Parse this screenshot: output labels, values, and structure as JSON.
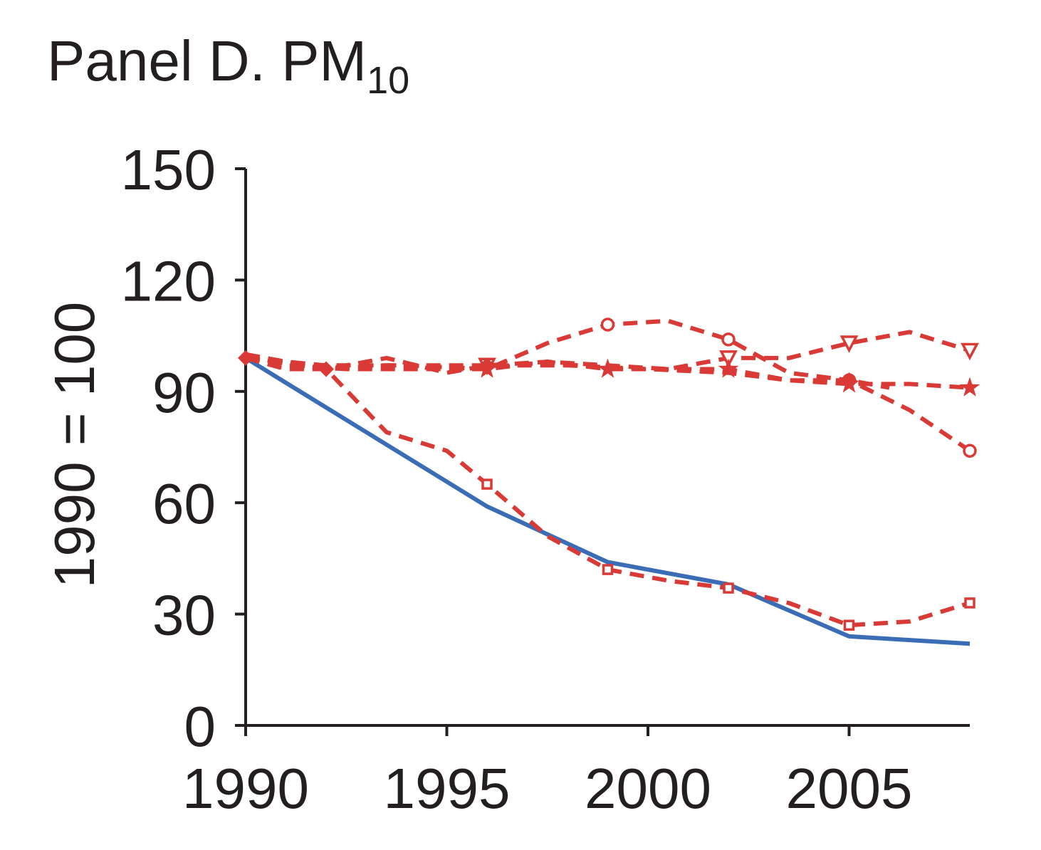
{
  "chart_data": {
    "type": "line",
    "title": "Panel D. PM",
    "title_subscript": "10",
    "xlabel": "",
    "ylabel": "1990 = 100",
    "xlim": [
      1990,
      2008
    ],
    "ylim": [
      0,
      150
    ],
    "x_ticks": [
      1990,
      1995,
      2000,
      2005
    ],
    "x_tick_labels": [
      "1990",
      "1995",
      "2000",
      "2005"
    ],
    "y_ticks": [
      0,
      30,
      60,
      90,
      120,
      150
    ],
    "y_tick_labels": [
      "0",
      "30",
      "60",
      "90",
      "120",
      "150"
    ],
    "grid": false,
    "legend": "none",
    "colors": {
      "solid": "#3a6db5",
      "dashed": "#d93a35",
      "axis": "#231f20"
    },
    "series": [
      {
        "name": "solid",
        "style": "solid",
        "marker": "none",
        "points": [
          [
            1990,
            99
          ],
          [
            1996,
            59
          ],
          [
            1999,
            44
          ],
          [
            2002,
            38
          ],
          [
            2005,
            24
          ],
          [
            2008,
            22
          ]
        ]
      },
      {
        "name": "square",
        "style": "dashed",
        "marker": "square",
        "markers_at": [
          1996,
          1999,
          2002,
          2005,
          2008
        ],
        "points": [
          [
            1990,
            100
          ],
          [
            1992,
            96
          ],
          [
            1993.5,
            79
          ],
          [
            1995,
            74
          ],
          [
            1996,
            65
          ],
          [
            1997.5,
            51
          ],
          [
            1999,
            42
          ],
          [
            2000.5,
            39
          ],
          [
            2002,
            37
          ],
          [
            2003.5,
            33
          ],
          [
            2005,
            27
          ],
          [
            2006.5,
            28
          ],
          [
            2008,
            33
          ]
        ]
      },
      {
        "name": "circle",
        "style": "dashed",
        "marker": "circle",
        "markers_at": [
          1999,
          2002,
          2005,
          2008
        ],
        "points": [
          [
            1990,
            100
          ],
          [
            1991,
            97
          ],
          [
            1992.5,
            96
          ],
          [
            1994,
            96
          ],
          [
            1996,
            96
          ],
          [
            1997.5,
            103
          ],
          [
            1999,
            108
          ],
          [
            2000.5,
            109
          ],
          [
            2002,
            104
          ],
          [
            2003.5,
            95
          ],
          [
            2005,
            93
          ],
          [
            2006.5,
            85
          ],
          [
            2008,
            74
          ]
        ]
      },
      {
        "name": "triangle",
        "style": "dashed",
        "marker": "triangle-down",
        "markers_at": [
          1996,
          2002,
          2005,
          2008
        ],
        "points": [
          [
            1990,
            99
          ],
          [
            1992,
            96
          ],
          [
            1993.5,
            99
          ],
          [
            1995,
            95
          ],
          [
            1996,
            97
          ],
          [
            1997.5,
            98
          ],
          [
            1999,
            97
          ],
          [
            2000.5,
            96
          ],
          [
            2002,
            99
          ],
          [
            2003.5,
            99
          ],
          [
            2005,
            103
          ],
          [
            2006.5,
            106
          ],
          [
            2008,
            101
          ]
        ]
      },
      {
        "name": "star",
        "style": "dashed",
        "marker": "star",
        "markers_at": [
          1996,
          1999,
          2002,
          2005,
          2008
        ],
        "points": [
          [
            1990,
            99
          ],
          [
            1992,
            97
          ],
          [
            1994,
            97
          ],
          [
            1996,
            96
          ],
          [
            1997.5,
            98
          ],
          [
            1999,
            96
          ],
          [
            2000.5,
            96
          ],
          [
            2002,
            96
          ],
          [
            2003.5,
            93
          ],
          [
            2005,
            92
          ],
          [
            2006.5,
            92
          ],
          [
            2008,
            91
          ]
        ]
      },
      {
        "name": "diamond",
        "style": "dashed",
        "marker": "diamond",
        "markers_at": [
          1990,
          1992,
          1996,
          2005
        ],
        "points": [
          [
            1990,
            99
          ],
          [
            1991,
            96
          ],
          [
            1992,
            96
          ],
          [
            1993.5,
            97
          ],
          [
            1995,
            97
          ],
          [
            1996,
            97
          ],
          [
            1998,
            97
          ],
          [
            2000,
            96
          ],
          [
            2002,
            95
          ],
          [
            2003.5,
            93
          ],
          [
            2005,
            93
          ],
          [
            2006,
            91
          ]
        ]
      }
    ]
  }
}
